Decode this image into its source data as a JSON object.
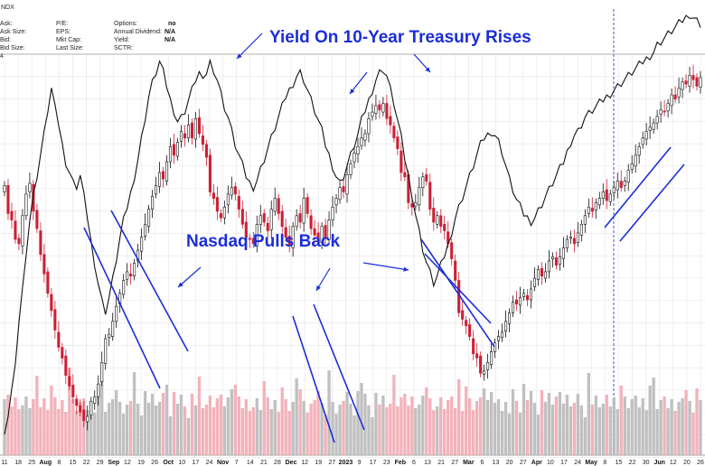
{
  "header": {
    "symbol": "NDX",
    "fields": [
      {
        "label": "Ask:",
        "value": ""
      },
      {
        "label": "Ask Size:",
        "value": ""
      },
      {
        "label": "Bid:",
        "value": ""
      },
      {
        "label": "Bid Size:",
        "value": ""
      },
      {
        "label": "P/E:",
        "value": ""
      },
      {
        "label": "EPS:",
        "value": ""
      },
      {
        "label": "Mkt Cap:",
        "value": ""
      },
      {
        "label": "Last Size:",
        "value": ""
      },
      {
        "label": "Options:",
        "value": "no"
      },
      {
        "label": "Annual Dividend:",
        "value": "N/A"
      },
      {
        "label": "Yield:",
        "value": "N/A"
      },
      {
        "label": "SCTR:",
        "value": ""
      }
    ],
    "corner_digit": "4"
  },
  "annotations": {
    "yield_title": "Yield On 10-Year Treasury Rises",
    "nasdaq_title": "Nasdaq Pulls Back"
  },
  "colors": {
    "up": "#ffffff",
    "down": "#cc1f35",
    "volume_up": "#b9b9b9",
    "volume_down": "#f2aab3",
    "yield_line": "#111111",
    "annotation": "#1b2ed8",
    "grid": "#e4e4e4"
  },
  "chart_data": {
    "type": "candlestick",
    "title": "",
    "x_ticks": [
      {
        "label": "11",
        "bold": false
      },
      {
        "label": "18",
        "bold": false
      },
      {
        "label": "25",
        "bold": false
      },
      {
        "label": "Aug",
        "bold": true
      },
      {
        "label": "8",
        "bold": false
      },
      {
        "label": "15",
        "bold": false
      },
      {
        "label": "22",
        "bold": false
      },
      {
        "label": "29",
        "bold": false
      },
      {
        "label": "Sep",
        "bold": true
      },
      {
        "label": "12",
        "bold": false
      },
      {
        "label": "19",
        "bold": false
      },
      {
        "label": "26",
        "bold": false
      },
      {
        "label": "Oct",
        "bold": true
      },
      {
        "label": "10",
        "bold": false
      },
      {
        "label": "17",
        "bold": false
      },
      {
        "label": "24",
        "bold": false
      },
      {
        "label": "Nov",
        "bold": true
      },
      {
        "label": "7",
        "bold": false
      },
      {
        "label": "14",
        "bold": false
      },
      {
        "label": "21",
        "bold": false
      },
      {
        "label": "28",
        "bold": false
      },
      {
        "label": "Dec",
        "bold": true
      },
      {
        "label": "12",
        "bold": false
      },
      {
        "label": "19",
        "bold": false
      },
      {
        "label": "27",
        "bold": false
      },
      {
        "label": "2023",
        "bold": true
      },
      {
        "label": "9",
        "bold": false
      },
      {
        "label": "17",
        "bold": false
      },
      {
        "label": "23",
        "bold": false
      },
      {
        "label": "Feb",
        "bold": true
      },
      {
        "label": "6",
        "bold": false
      },
      {
        "label": "13",
        "bold": false
      },
      {
        "label": "21",
        "bold": false
      },
      {
        "label": "27",
        "bold": false
      },
      {
        "label": "Mar",
        "bold": true
      },
      {
        "label": "6",
        "bold": false
      },
      {
        "label": "13",
        "bold": false
      },
      {
        "label": "20",
        "bold": false
      },
      {
        "label": "27",
        "bold": false
      },
      {
        "label": "Apr",
        "bold": true
      },
      {
        "label": "10",
        "bold": false
      },
      {
        "label": "17",
        "bold": false
      },
      {
        "label": "24",
        "bold": false
      },
      {
        "label": "May",
        "bold": true
      },
      {
        "label": "8",
        "bold": false
      },
      {
        "label": "15",
        "bold": false
      },
      {
        "label": "22",
        "bold": false
      },
      {
        "label": "30",
        "bold": false
      },
      {
        "label": "Jun",
        "bold": true
      },
      {
        "label": "12",
        "bold": false
      },
      {
        "label": "20",
        "bold": false
      },
      {
        "label": "26",
        "bold": false
      }
    ],
    "series": [
      {
        "name": "",
        "kind": "candlestick",
        "close": [
          400,
          374,
          368,
          350,
          346,
          372,
          392,
          402,
          376,
          360,
          336,
          318,
          300,
          284,
          266,
          250,
          240,
          224,
          214,
          204,
          196,
          190,
          182,
          186,
          200,
          204,
          216,
          236,
          258,
          262,
          274,
          288,
          300,
          312,
          320,
          316,
          328,
          340,
          352,
          364,
          378,
          390,
          400,
          412,
          406,
          422,
          436,
          428,
          440,
          450,
          444,
          456,
          444,
          462,
          448,
          438,
          426,
          394,
          388,
          376,
          370,
          380,
          392,
          398,
          392,
          378,
          364,
          352,
          350,
          346,
          364,
          372,
          366,
          358,
          378,
          388,
          374,
          362,
          352,
          344,
          362,
          372,
          366,
          388,
          374,
          360,
          354,
          348,
          362,
          352,
          368,
          380,
          388,
          398,
          394,
          410,
          420,
          430,
          436,
          444,
          448,
          462,
          468,
          474,
          470,
          476,
          462,
          456,
          444,
          434,
          412,
          408,
          384,
          380,
          384,
          398,
          408,
          404,
          378,
          366,
          372,
          362,
          358,
          346,
          332,
          312,
          282,
          276,
          270,
          260,
          244,
          240,
          226,
          228,
          236,
          246,
          254,
          260,
          264,
          274,
          282,
          292,
          290,
          296,
          300,
          294,
          304,
          314,
          322,
          316,
          320,
          330,
          334,
          326,
          334,
          342,
          350,
          352,
          346,
          356,
          364,
          372,
          380,
          376,
          384,
          388,
          394,
          386,
          392,
          398,
          404,
          398,
          404,
          414,
          420,
          428,
          436,
          444,
          450,
          454,
          458,
          464,
          470,
          468,
          476,
          484,
          480,
          490,
          496,
          494,
          502,
          498,
          492,
          500
        ]
      },
      {
        "name": "",
        "kind": "line",
        "axis": "right",
        "values": [
          250,
          264,
          278,
          296,
          318,
          336,
          358,
          376,
          390,
          402,
          414,
          426,
          440,
          452,
          446,
          432,
          420,
          410,
          404,
          398,
          396,
          402,
          390,
          378,
          364,
          352,
          340,
          330,
          324,
          332,
          342,
          354,
          366,
          376,
          384,
          392,
          402,
          412,
          424,
          436,
          448,
          456,
          462,
          468,
          462,
          454,
          446,
          440,
          434,
          436,
          440,
          446,
          452,
          458,
          462,
          456,
          462,
          468,
          464,
          458,
          450,
          442,
          436,
          428,
          420,
          414,
          408,
          402,
          398,
          396,
          400,
          406,
          412,
          418,
          424,
          430,
          436,
          442,
          448,
          452,
          456,
          460,
          462,
          458,
          452,
          446,
          440,
          434,
          428,
          420,
          414,
          408,
          402,
          398,
          402,
          408,
          414,
          420,
          426,
          434,
          440,
          446,
          452,
          458,
          462,
          464,
          460,
          452,
          444,
          434,
          424,
          412,
          402,
          392,
          380,
          370,
          360,
          352,
          346,
          340,
          344,
          350,
          356,
          362,
          370,
          378,
          384,
          390,
          396,
          402,
          408,
          414,
          420,
          424,
          426,
          428,
          426,
          422,
          416,
          408,
          400,
          394,
          388,
          384,
          380,
          378,
          376,
          378,
          382,
          386,
          390,
          394,
          398,
          402,
          406,
          410,
          416,
          422,
          426,
          428,
          432,
          436,
          438,
          440,
          442,
          444,
          446,
          448,
          450,
          452,
          454,
          456,
          458,
          460,
          462,
          464,
          466,
          468,
          470,
          472,
          474,
          478,
          480,
          482,
          484,
          486,
          488,
          490,
          492,
          494,
          496,
          494,
          492,
          490
        ]
      }
    ],
    "legend": "none",
    "grid": true
  }
}
